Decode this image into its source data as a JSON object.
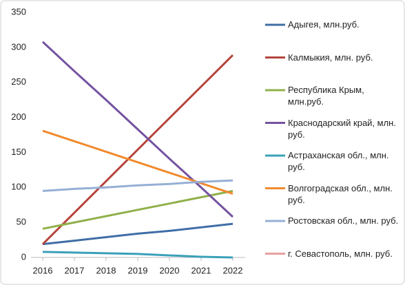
{
  "chart_data": {
    "type": "line",
    "x": [
      2016,
      2017,
      2018,
      2019,
      2020,
      2021,
      2022
    ],
    "xlim": [
      2016,
      2022
    ],
    "xticks": [
      2016,
      2017,
      2018,
      2019,
      2020,
      2021,
      2022
    ],
    "ylim": [
      0,
      350
    ],
    "yticks": [
      0,
      50,
      100,
      150,
      200,
      250,
      300,
      350
    ],
    "legend": "right",
    "series": [
      {
        "name": "Адыгея, млн.руб.",
        "color": "#3f6ea6",
        "values": [
          19,
          24,
          29,
          34,
          38,
          43,
          48
        ]
      },
      {
        "name": "Калмыкия, млн. руб.",
        "color": "#b5443c",
        "values": [
          19,
          64,
          109,
          154,
          199,
          244,
          289
        ]
      },
      {
        "name": "Республика Крым, млн.руб.",
        "color": "#8fb04a",
        "values": [
          41,
          50,
          59,
          68,
          77,
          86,
          95
        ]
      },
      {
        "name": "Краснодарский край, млн. руб.",
        "color": "#7452a0",
        "values": [
          308,
          266,
          225,
          183,
          141,
          100,
          58
        ]
      },
      {
        "name": "Астраханская обл., млн. руб.",
        "color": "#3aa0b8",
        "values": [
          8,
          7,
          6,
          5,
          3,
          1,
          0
        ]
      },
      {
        "name": "Волгоградская обл., млн. руб.",
        "color": "#f08a2e",
        "values": [
          181,
          166,
          151,
          136,
          121,
          106,
          91
        ]
      },
      {
        "name": "Ростовская обл., млн. руб.",
        "color": "#95afd6",
        "values": [
          95,
          98,
          100,
          103,
          105,
          108,
          110
        ]
      },
      {
        "name": "г. Севастополь, млн. руб.",
        "color": "#e6a0a0",
        "values": [
          null,
          null,
          null,
          null,
          null,
          null,
          null
        ]
      }
    ]
  }
}
